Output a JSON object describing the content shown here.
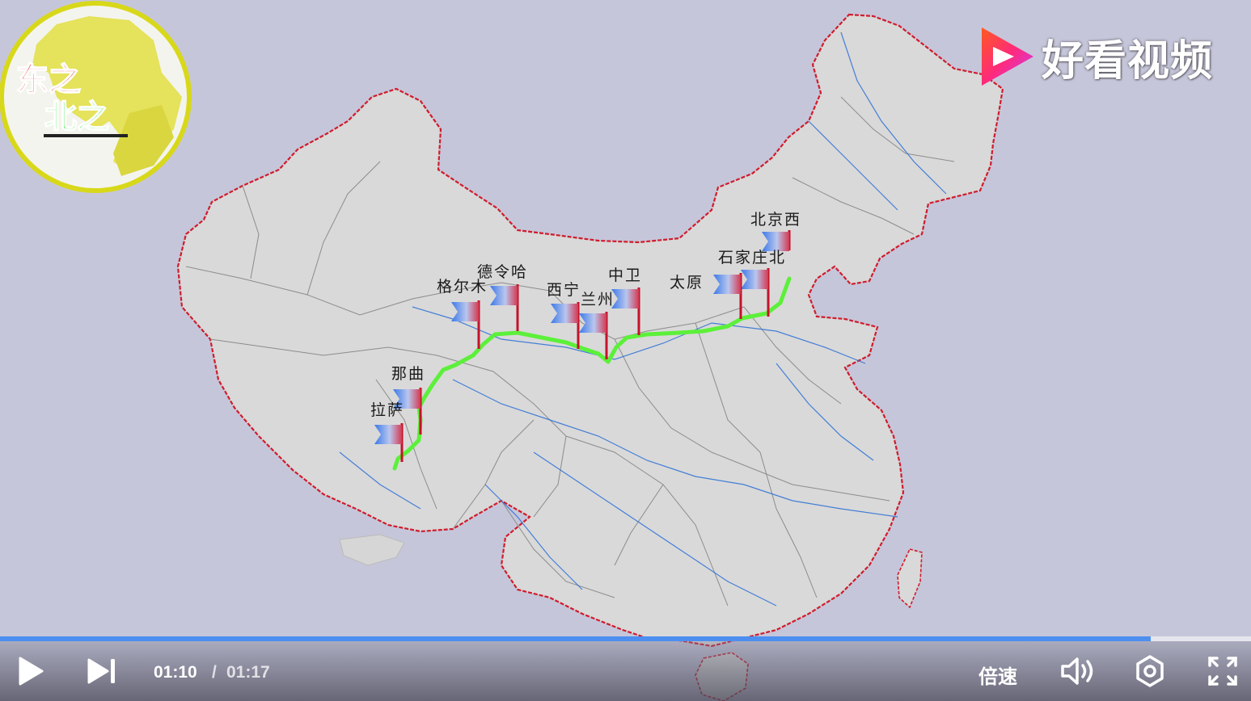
{
  "logo": {
    "line1": "东之",
    "line2": "北之"
  },
  "watermark": {
    "text": "好看视频"
  },
  "route": {
    "color": "#5cf03a",
    "cities": [
      {
        "id": "beijingxi",
        "name": "北京西"
      },
      {
        "id": "shijiazhuang",
        "name": "石家庄北"
      },
      {
        "id": "taiyuan",
        "name": "太原"
      },
      {
        "id": "zhongwei",
        "name": "中卫"
      },
      {
        "id": "lanzhou",
        "name": "兰州"
      },
      {
        "id": "xining",
        "name": "西宁"
      },
      {
        "id": "delingha",
        "name": "德令哈"
      },
      {
        "id": "geermu",
        "name": "格尔木"
      },
      {
        "id": "naqu",
        "name": "那曲"
      },
      {
        "id": "lasa",
        "name": "拉萨"
      }
    ]
  },
  "player": {
    "current_time": "01:10",
    "separator": "/",
    "total_time": "01:17",
    "progress": 0.92,
    "speed_label": "倍速",
    "accent": "#4d8ff0"
  }
}
